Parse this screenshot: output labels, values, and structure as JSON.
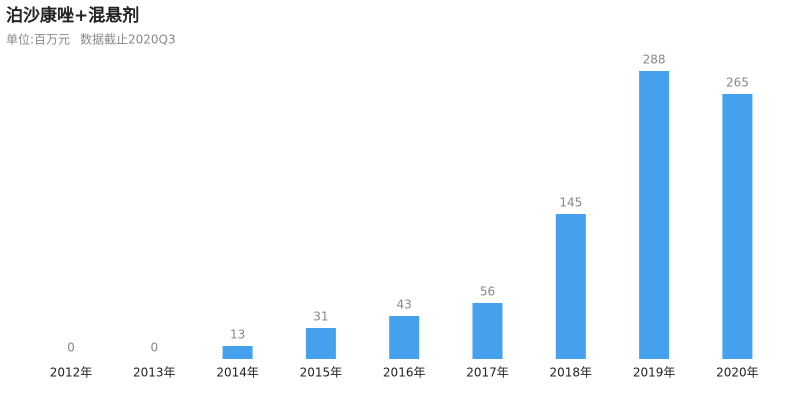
{
  "chart_data": {
    "type": "bar",
    "title": "泊沙康唑+混悬剂",
    "subtitle": "单位:百万元",
    "note": "数据截止2020Q3",
    "categories": [
      "2012年",
      "2013年",
      "2014年",
      "2015年",
      "2016年",
      "2017年",
      "2018年",
      "2019年",
      "2020年"
    ],
    "values": [
      0,
      0,
      13,
      31,
      43,
      56,
      145,
      288,
      265
    ],
    "color": "#45a0ee"
  }
}
